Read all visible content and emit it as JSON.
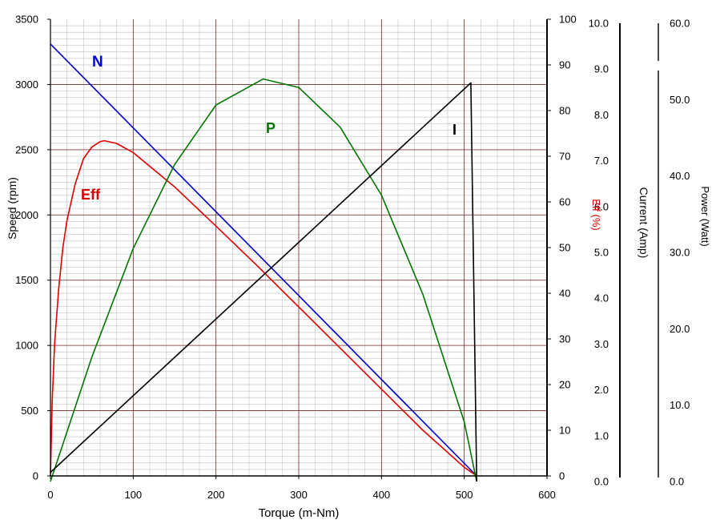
{
  "chart_data": {
    "type": "line",
    "xlabel": "Torque (m-Nm)",
    "xlim": [
      0,
      600
    ],
    "x_ticks": [
      "0",
      "100",
      "200",
      "300",
      "400",
      "500",
      "600"
    ],
    "grid": true,
    "axes": {
      "speed": {
        "label": "Speed (rpm)",
        "range": [
          0,
          3500
        ],
        "ticks": [
          "0",
          "500",
          "1000",
          "1500",
          "2000",
          "2500",
          "3000",
          "3500"
        ]
      },
      "eff": {
        "label": "Eff (%)",
        "range": [
          0,
          100
        ],
        "ticks": [
          "0",
          "10",
          "20",
          "30",
          "40",
          "50",
          "60",
          "70",
          "80",
          "90",
          "100"
        ]
      },
      "current": {
        "label": "Current (Amp)",
        "range": [
          0,
          10
        ],
        "ticks": [
          "0.0",
          "1.0",
          "2.0",
          "3.0",
          "4.0",
          "5.0",
          "6.0",
          "7.0",
          "8.0",
          "9.0",
          "10.0"
        ]
      },
      "power": {
        "label": "Power (Watt)",
        "range": [
          0,
          60
        ],
        "ticks": [
          "0.0",
          "10.0",
          "20.0",
          "30.0",
          "40.0",
          "50.0",
          "60.0"
        ]
      }
    },
    "series": [
      {
        "name": "N",
        "axis": "speed",
        "color": "#0000cc",
        "x": [
          0,
          515
        ],
        "y": [
          3310,
          0
        ]
      },
      {
        "name": "Eff",
        "axis": "eff",
        "color": "#dd0000",
        "x": [
          0,
          2,
          5,
          10,
          15,
          20,
          30,
          40,
          50,
          60,
          65,
          80,
          100,
          150,
          200,
          250,
          300,
          350,
          400,
          450,
          500,
          515
        ],
        "y": [
          0,
          16,
          29,
          41,
          50,
          56,
          64,
          69.5,
          72,
          73.2,
          73.4,
          72.8,
          70.8,
          63.3,
          54.7,
          46,
          37,
          28,
          19,
          10,
          1.9,
          0
        ]
      },
      {
        "name": "P",
        "axis": "power",
        "color": "#007700",
        "x": [
          0,
          50,
          100,
          150,
          200,
          257,
          300,
          350,
          400,
          450,
          500,
          515
        ],
        "y": [
          0,
          16.3,
          30.5,
          41.5,
          49.3,
          52.7,
          51.6,
          46.4,
          37.5,
          24.5,
          7.8,
          0
        ]
      },
      {
        "name": "I",
        "axis": "current",
        "color": "#000000",
        "x": [
          0,
          508,
          515
        ],
        "y": [
          0.2,
          8.7,
          0
        ]
      }
    ]
  },
  "series_labels": {
    "N": "N",
    "Eff": "Eff",
    "P": "P",
    "I": "I"
  }
}
